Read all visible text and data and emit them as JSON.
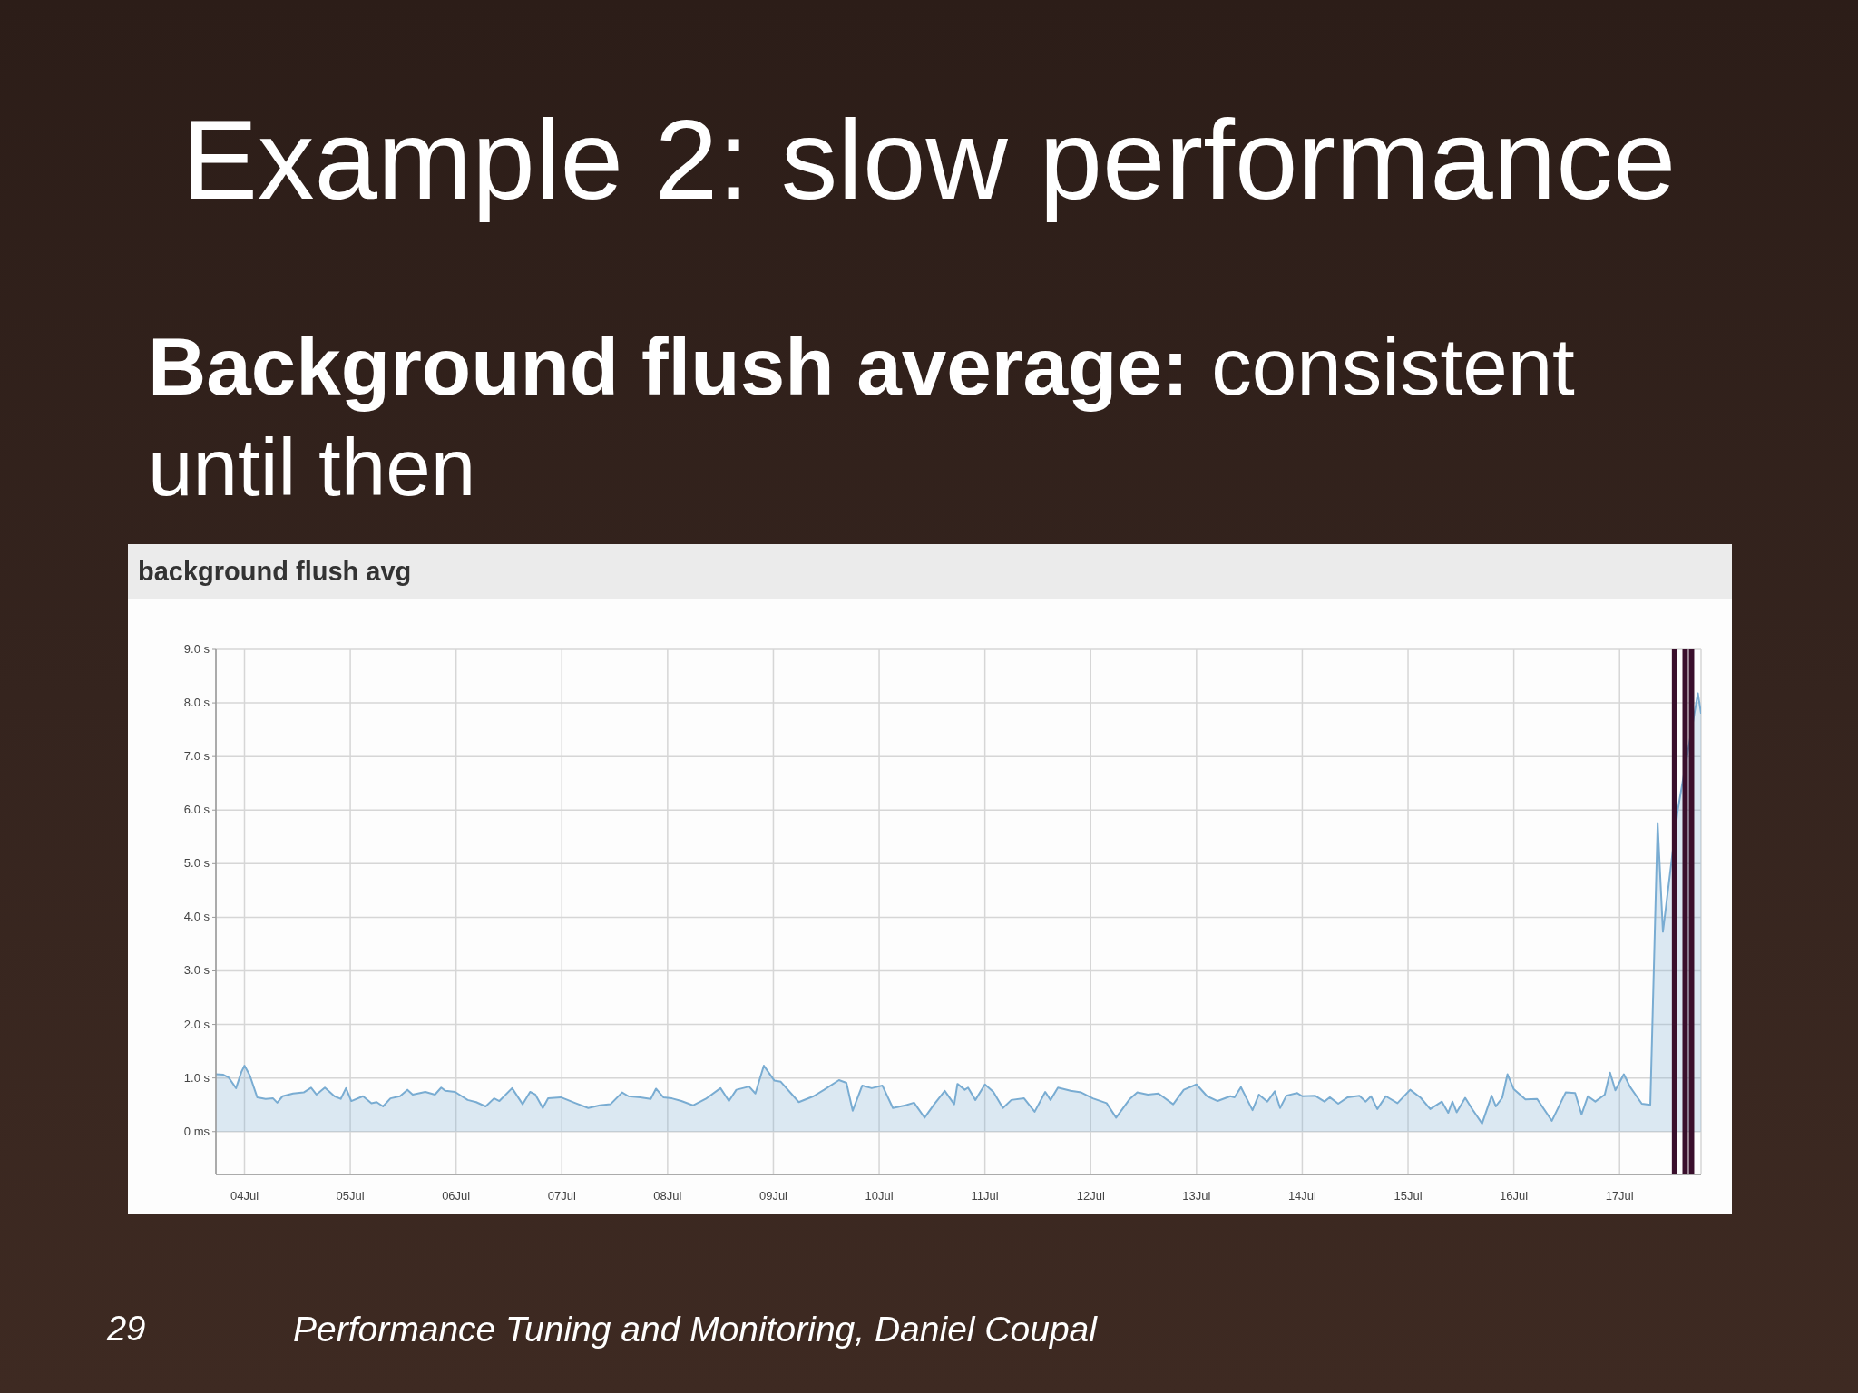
{
  "chart_data": {
    "type": "area",
    "title": "Example 2: slow performance",
    "subtitle": "Background flush average: consistent until then",
    "annotations": [
      "background flush avg",
      "29",
      "Performance Tuning and Monitoring, Daniel Coupal"
    ],
    "x": [
      "--07-03T17:31",
      "--07-03T19:12",
      "--07-03T20:24",
      "--07-03T22:05",
      "--07-03T23:17",
      "--07-04T00:00",
      "--07-04T01:12",
      "--07-04T02:53",
      "--07-04T04:48",
      "--07-04T06:29",
      "--07-04T07:26",
      "--07-04T08:38",
      "--07-04T11:02",
      "--07-04T13:26",
      "--07-04T15:07",
      "--07-04T16:19",
      "--07-04T18:14",
      "--07-04T20:24",
      "--07-04T21:50",
      "--07-04T23:02",
      "--07-05T00:14",
      "--07-05T02:53",
      "--07-05T04:48",
      "--07-05T06:00",
      "--07-05T07:26",
      "--07-05T09:07",
      "--07-05T11:17",
      "--07-05T12:58",
      "--07-05T14:10",
      "--07-05T17:02",
      "--07-05T19:12",
      "--07-05T20:38",
      "--07-05T21:36",
      "--07-05T23:46",
      "--07-06T02:38",
      "--07-06T04:34",
      "--07-06T06:43",
      "--07-06T08:38",
      "--07-06T09:50",
      "--07-06T12:43",
      "--07-06T15:07",
      "--07-06T16:48",
      "--07-06T18:00",
      "--07-06T19:41",
      "--07-06T20:53",
      "--07-06T23:46",
      "--07-07T03:07",
      "--07-07T06:00",
      "--07-07T08:38",
      "--07-07T11:02",
      "--07-07T13:41",
      "--07-07T15:07",
      "--07-07T17:46",
      "--07-07T20:10",
      "--07-07T21:22",
      "--07-07T23:02",
      "--07-08T00:58",
      "--07-08T03:07",
      "--07-08T05:46",
      "--07-08T08:38",
      "--07-08T12:00",
      "--07-08T13:55",
      "--07-08T15:36",
      "--07-08T18:29",
      "--07-08T19:55",
      "--07-08T21:50",
      "--07-09T00:14",
      "--07-09T01:41",
      "--07-09T05:46",
      "--07-09T09:07",
      "--07-09T11:31",
      "--07-09T14:53",
      "--07-09T16:34",
      "--07-09T18:00",
      "--07-09T20:10",
      "--07-09T22:19",
      "--07-10T00:43",
      "--07-10T03:07",
      "--07-10T06:00",
      "--07-10T07:55",
      "--07-10T10:19",
      "--07-10T12:29",
      "--07-10T14:53",
      "--07-10T17:02",
      "--07-10T17:46",
      "--07-10T19:26",
      "--07-10T20:10",
      "--07-10T21:50",
      "--07-11T00:00",
      "--07-11T01:55",
      "--07-11T04:05",
      "--07-11T06:00",
      "--07-11T08:53",
      "--07-11T11:17",
      "--07-11T13:41",
      "--07-11T14:53",
      "--07-11T16:34",
      "--07-11T19:26",
      "--07-11T21:50",
      "--07-12T00:29",
      "--07-12T03:36",
      "--07-12T05:46",
      "--07-12T08:53",
      "--07-12T10:34",
      "--07-12T12:58",
      "--07-12T15:22",
      "--07-12T18:43",
      "--07-12T21:07",
      "--07-13T00:00",
      "--07-13T02:24",
      "--07-13T04:48",
      "--07-13T07:41",
      "--07-13T08:38",
      "--07-13T10:05",
      "--07-13T12:43",
      "--07-13T14:10",
      "--07-13T16:05",
      "--07-13T17:46",
      "--07-13T18:58",
      "--07-13T20:24",
      "--07-13T22:48",
      "--07-14T00:00",
      "--07-14T02:53",
      "--07-14T05:02",
      "--07-14T06:14",
      "--07-14T08:10",
      "--07-14T10:19",
      "--07-14T12:58",
      "--07-14T14:24",
      "--07-14T15:36",
      "--07-14T17:02",
      "--07-14T18:58",
      "--07-14T21:36",
      "--07-15T00:29",
      "--07-15T02:53",
      "--07-15T05:02",
      "--07-15T07:41",
      "--07-15T09:07",
      "--07-15T10:05",
      "--07-15T11:02",
      "--07-15T12:58",
      "--07-15T14:38",
      "--07-15T16:48",
      "--07-15T18:58",
      "--07-15T19:55",
      "--07-15T21:22",
      "--07-15T22:34",
      "--07-16T00:00",
      "--07-16T02:38",
      "--07-16T05:17",
      "--07-16T08:38",
      "--07-16T11:46",
      "--07-16T13:55",
      "--07-16T15:22",
      "--07-16T16:48",
      "--07-16T18:29",
      "--07-16T20:38",
      "--07-16T21:50",
      "--07-16T23:02",
      "--07-17T00:58",
      "--07-17T02:24",
      "--07-17T05:02",
      "--07-17T06:58",
      "--07-17T08:38",
      "--07-17T09:50",
      "--07-17T13:12",
      "--07-17T17:46",
      "--07-17T18:29"
    ],
    "series": [
      {
        "color": "#79acd2",
        "values": [
          1.07,
          1.06,
          1.01,
          0.81,
          1.11,
          1.23,
          1.05,
          0.64,
          0.61,
          0.62,
          0.54,
          0.66,
          0.71,
          0.73,
          0.82,
          0.69,
          0.82,
          0.66,
          0.61,
          0.81,
          0.57,
          0.66,
          0.53,
          0.55,
          0.47,
          0.62,
          0.66,
          0.78,
          0.69,
          0.74,
          0.69,
          0.82,
          0.76,
          0.74,
          0.59,
          0.55,
          0.47,
          0.62,
          0.57,
          0.81,
          0.51,
          0.74,
          0.69,
          0.44,
          0.62,
          0.64,
          0.53,
          0.44,
          0.49,
          0.51,
          0.73,
          0.66,
          0.64,
          0.61,
          0.8,
          0.64,
          0.62,
          0.57,
          0.49,
          0.61,
          0.81,
          0.57,
          0.78,
          0.84,
          0.71,
          1.23,
          0.95,
          0.93,
          0.55,
          0.66,
          0.78,
          0.96,
          0.91,
          0.39,
          0.86,
          0.81,
          0.86,
          0.44,
          0.49,
          0.54,
          0.26,
          0.51,
          0.76,
          0.51,
          0.89,
          0.78,
          0.82,
          0.59,
          0.88,
          0.74,
          0.44,
          0.59,
          0.62,
          0.37,
          0.74,
          0.59,
          0.82,
          0.76,
          0.73,
          0.62,
          0.53,
          0.26,
          0.61,
          0.73,
          0.69,
          0.71,
          0.51,
          0.78,
          0.88,
          0.66,
          0.57,
          0.66,
          0.64,
          0.83,
          0.4,
          0.69,
          0.56,
          0.75,
          0.44,
          0.67,
          0.72,
          0.66,
          0.67,
          0.56,
          0.64,
          0.52,
          0.64,
          0.67,
          0.56,
          0.66,
          0.42,
          0.66,
          0.53,
          0.78,
          0.63,
          0.42,
          0.56,
          0.35,
          0.56,
          0.36,
          0.63,
          0.41,
          0.15,
          0.67,
          0.47,
          0.63,
          1.07,
          0.79,
          0.6,
          0.61,
          0.2,
          0.73,
          0.72,
          0.32,
          0.66,
          0.56,
          0.69,
          1.1,
          0.77,
          1.07,
          0.83,
          0.52,
          0.5,
          5.76,
          3.73,
          6.0,
          8.18,
          7.8
        ]
      }
    ],
    "xlim": [
      "--07-03T17:31",
      "--07-17T18:29"
    ],
    "xticks": [
      {
        "value": "--07-04",
        "label": "04Jul"
      },
      {
        "value": "--07-05",
        "label": "05Jul"
      },
      {
        "value": "--07-06",
        "label": "06Jul"
      },
      {
        "value": "--07-07",
        "label": "07Jul"
      },
      {
        "value": "--07-08",
        "label": "08Jul"
      },
      {
        "value": "--07-09",
        "label": "09Jul"
      },
      {
        "value": "--07-10",
        "label": "10Jul"
      },
      {
        "value": "--07-11",
        "label": "11Jul"
      },
      {
        "value": "--07-12",
        "label": "12Jul"
      },
      {
        "value": "--07-13",
        "label": "13Jul"
      },
      {
        "value": "--07-14",
        "label": "14Jul"
      },
      {
        "value": "--07-15",
        "label": "15Jul"
      },
      {
        "value": "--07-16",
        "label": "16Jul"
      },
      {
        "value": "--07-17",
        "label": "17Jul"
      }
    ],
    "ylim": [
      -0.8,
      9
    ],
    "yticks": [
      {
        "value": 0,
        "label": "0 ms"
      },
      {
        "value": 1,
        "label": "1.0 s"
      },
      {
        "value": 2,
        "label": "2.0 s"
      },
      {
        "value": 3,
        "label": "3.0 s"
      },
      {
        "value": 4,
        "label": "4.0 s"
      },
      {
        "value": 5,
        "label": "5.0 s"
      },
      {
        "value": 6,
        "label": "6.0 s"
      },
      {
        "value": 7,
        "label": "7.0 s"
      },
      {
        "value": 8,
        "label": "8.0 s"
      },
      {
        "value": 9,
        "label": "9.0 s"
      }
    ],
    "ref_lines": [
      {
        "axis": "x",
        "value": "--07-17T12:29",
        "color": "#3a0f2c"
      },
      {
        "axis": "x",
        "value": "--07-17T14:53",
        "color": "#3a0f2c"
      },
      {
        "axis": "x",
        "value": "--07-17T16:19",
        "color": "#3a0f2c"
      }
    ],
    "grid": true
  }
}
